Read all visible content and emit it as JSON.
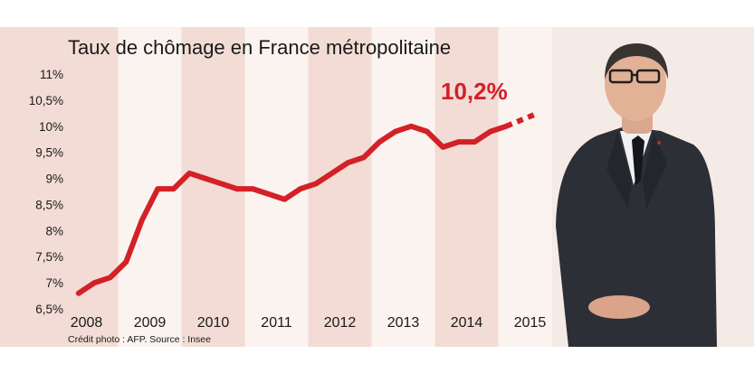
{
  "chart_data": {
    "type": "line",
    "title": "Taux de chômage en France métropolitaine",
    "x_tick_labels": [
      "2008",
      "2009",
      "2010",
      "2011",
      "2012",
      "2013",
      "2014",
      "2015"
    ],
    "y_tick_labels": [
      "6,5%",
      "7%",
      "7,5%",
      "8%",
      "8,5%",
      "9%",
      "9,5%",
      "10%",
      "10,5%",
      "11%"
    ],
    "ylim": [
      6.5,
      11
    ],
    "xlim": [
      2007.75,
      2015.25
    ],
    "grid": "alternating vertical year bands",
    "series": [
      {
        "values_x": [
          2007.875,
          2008.125,
          2008.375,
          2008.625,
          2008.875,
          2009.125,
          2009.375,
          2009.625,
          2009.875,
          2010.125,
          2010.375,
          2010.625,
          2010.875,
          2011.125,
          2011.375,
          2011.625,
          2011.875,
          2012.125,
          2012.375,
          2012.625,
          2012.875,
          2013.125,
          2013.375,
          2013.625,
          2013.875,
          2014.125,
          2014.375,
          2014.625
        ],
        "values_y": [
          6.8,
          7.0,
          7.1,
          7.4,
          8.2,
          8.8,
          8.8,
          9.1,
          9.0,
          8.9,
          8.8,
          8.8,
          8.7,
          8.6,
          8.8,
          8.9,
          9.1,
          9.3,
          9.4,
          9.7,
          9.9,
          10.0,
          9.9,
          9.6,
          9.7,
          9.7,
          9.9,
          10.0
        ]
      }
    ],
    "projection": {
      "x": [
        2014.625,
        2015.125
      ],
      "y": [
        10.0,
        10.25
      ],
      "style": "dotted"
    },
    "annotation": {
      "text": "10,2%"
    },
    "line_color": "#d42027",
    "band_color": "#f2dcd5",
    "background_color": "#fbf3ef"
  },
  "credit": "Crédit photo : AFP. Source : Insee"
}
